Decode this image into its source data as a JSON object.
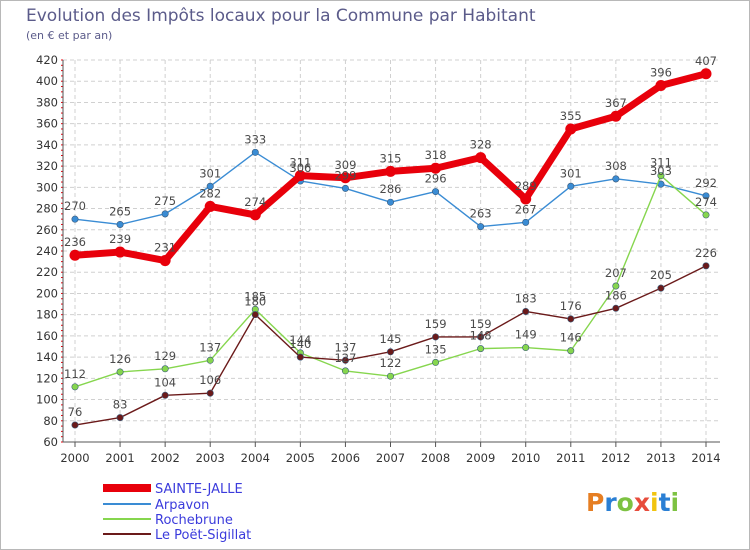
{
  "header": {
    "title": "Evolution des Impôts locaux pour la Commune par Habitant",
    "subtitle": "(en € et par an)"
  },
  "logo": {
    "text": "Proxiti",
    "colors": [
      "#e67e22",
      "#2a7fd4",
      "#7dc242",
      "#e74c3c",
      "#f1c40f",
      "#2a7fd4",
      "#7dc242"
    ]
  },
  "chart_data": {
    "type": "line",
    "title": "Evolution des Impôts locaux pour la Commune par Habitant",
    "subtitle": "(en € et par an)",
    "xlabel": "",
    "ylabel": "",
    "x": [
      "2000",
      "2001",
      "2002",
      "2003",
      "2004",
      "2005",
      "2006",
      "2007",
      "2008",
      "2009",
      "2010",
      "2011",
      "2012",
      "2013",
      "2014"
    ],
    "ylim": [
      60,
      420
    ],
    "yticks": [
      60,
      80,
      100,
      120,
      140,
      160,
      180,
      200,
      220,
      240,
      260,
      280,
      300,
      320,
      340,
      360,
      380,
      400,
      420
    ],
    "grid": true,
    "legend_position": "bottom-left",
    "series": [
      {
        "name": "SAINTE-JALLE",
        "color": "#e8000b",
        "values": [
          236,
          239,
          231,
          282,
          274,
          311,
          309,
          315,
          318,
          328,
          289,
          355,
          367,
          396,
          407
        ]
      },
      {
        "name": "Arpavon",
        "color": "#3a8cd4",
        "values": [
          270,
          265,
          275,
          301,
          333,
          306,
          299,
          286,
          296,
          263,
          267,
          301,
          308,
          303,
          292
        ]
      },
      {
        "name": "Rochebrune",
        "color": "#86d64e",
        "values": [
          112,
          126,
          129,
          137,
          185,
          144,
          127,
          122,
          135,
          148,
          149,
          146,
          207,
          311,
          274
        ]
      },
      {
        "name": "Le Poët-Sigillat",
        "color": "#6b1a1a",
        "values": [
          76,
          83,
          104,
          106,
          180,
          140,
          137,
          145,
          159,
          159,
          183,
          176,
          186,
          205,
          226
        ]
      }
    ]
  }
}
